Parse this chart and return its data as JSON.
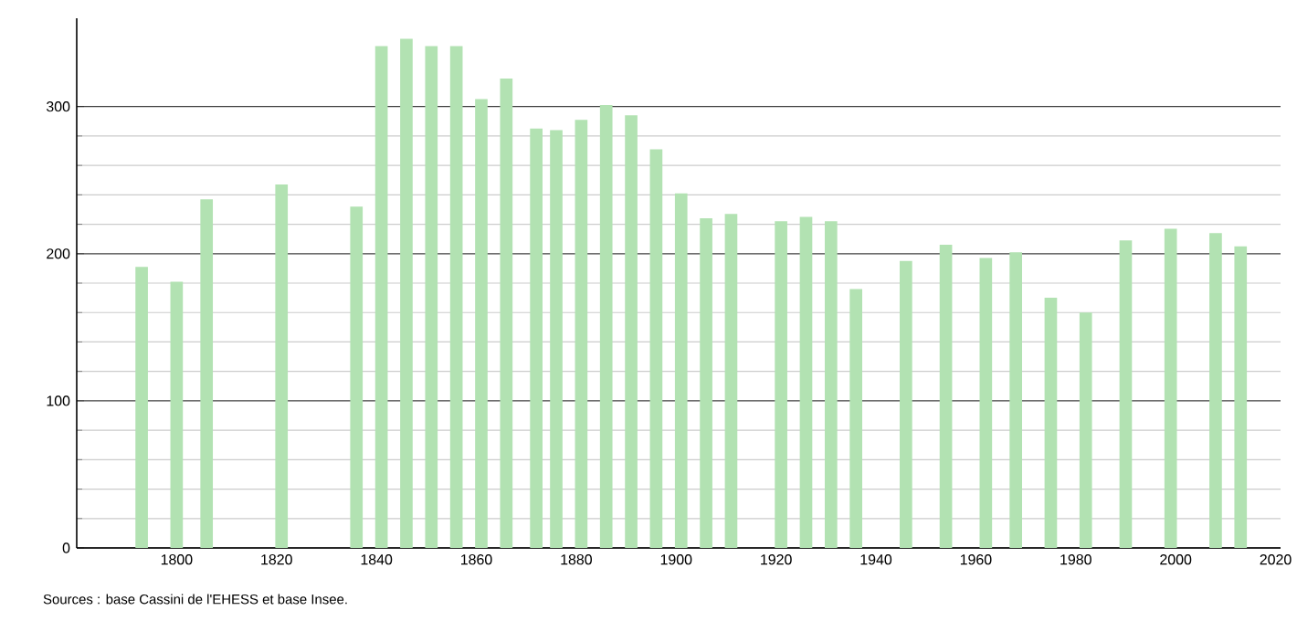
{
  "chart_data": {
    "type": "bar",
    "x": [
      1793,
      1800,
      1806,
      1821,
      1836,
      1841,
      1846,
      1851,
      1856,
      1861,
      1866,
      1872,
      1876,
      1881,
      1886,
      1891,
      1896,
      1901,
      1906,
      1911,
      1921,
      1926,
      1931,
      1936,
      1946,
      1954,
      1962,
      1968,
      1975,
      1982,
      1990,
      1999,
      2008,
      2013
    ],
    "values": [
      191,
      181,
      237,
      247,
      232,
      341,
      346,
      341,
      341,
      305,
      319,
      285,
      284,
      291,
      301,
      294,
      271,
      241,
      224,
      227,
      222,
      225,
      222,
      176,
      195,
      206,
      197,
      201,
      170,
      160,
      209,
      217,
      214,
      205
    ],
    "color": "#b2e2b2",
    "xlim": [
      1780,
      2021
    ],
    "ylim": [
      0,
      360
    ],
    "xticks": [
      1800,
      1820,
      1840,
      1860,
      1880,
      1900,
      1920,
      1940,
      1960,
      1980,
      2000,
      2020
    ],
    "yticks": [
      0,
      100,
      200,
      300
    ],
    "grid": "y",
    "annotations": [
      "Sources : base Cassini de l'EHESS et base Insee."
    ]
  }
}
